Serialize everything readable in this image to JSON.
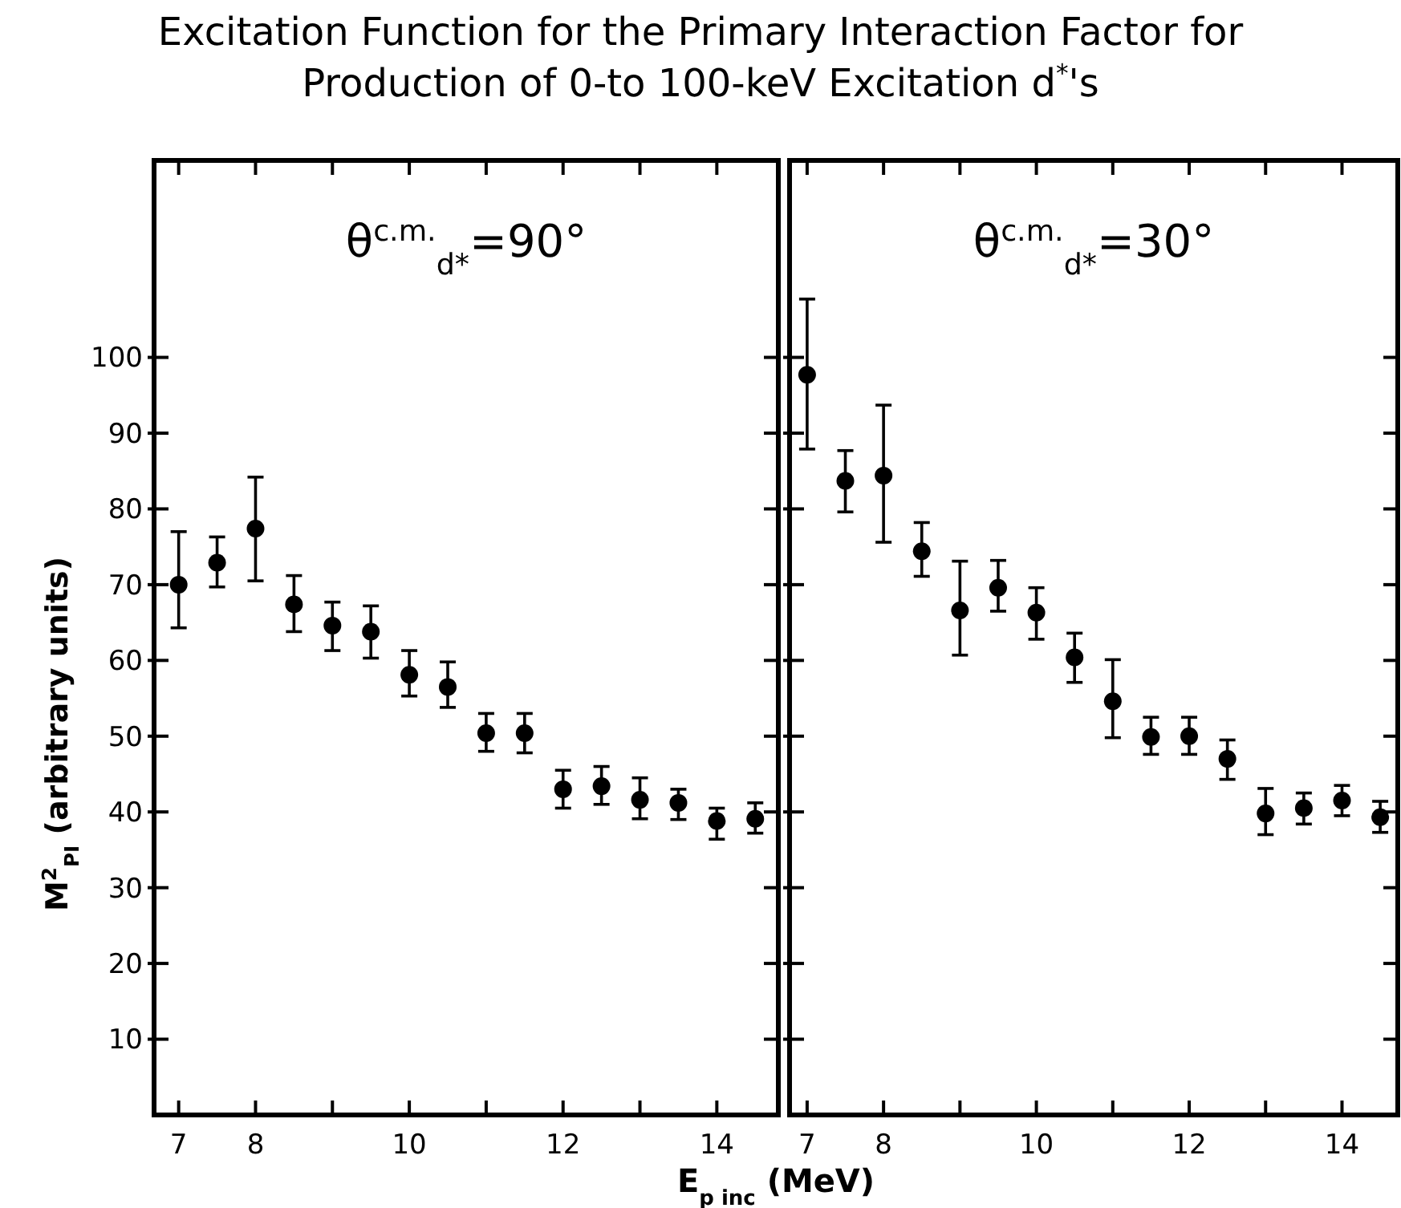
{
  "chart_data": [
    {
      "type": "scatter",
      "title": "Excitation Function for the Primary Interaction Factor for Production of 0-to 100-keV Excitation d$^{*}$'s",
      "xlabel": "E$_{p inc}$ (MeV)",
      "ylabel": "M$^{2}$$_{PI}$ (arbitrary units)",
      "annotations": [
        "θ$^{c.m.}$$_{d*}$=90°"
      ],
      "marker": "circle",
      "xlim": [
        6.68,
        14.8
      ],
      "ylim": [
        0,
        126
      ],
      "xticks": [
        7,
        8,
        {
          "value": 9,
          "label": null
        },
        10,
        {
          "value": 11,
          "label": null
        },
        12,
        {
          "value": 13,
          "label": null
        },
        14
      ],
      "yticks": [
        10,
        20,
        30,
        40,
        50,
        60,
        70,
        80,
        90,
        100
      ],
      "series": [
        {
          "color": "#000000",
          "x": [
            7,
            7.5,
            8,
            8.5,
            9,
            9.5,
            10,
            10.5,
            11,
            11.5,
            12,
            12.5,
            13,
            13.5,
            14,
            14.5
          ],
          "values": [
            70.0,
            72.9,
            77.4,
            67.4,
            64.6,
            63.8,
            58.1,
            56.5,
            50.4,
            50.4,
            43.0,
            43.4,
            41.6,
            41.2,
            38.8,
            39.1
          ],
          "errors": [
            [
              64.3,
              77.0
            ],
            [
              69.7,
              76.3
            ],
            [
              70.5,
              84.2
            ],
            [
              63.8,
              71.2
            ],
            [
              61.3,
              67.7
            ],
            [
              60.3,
              67.2
            ],
            [
              55.3,
              61.3
            ],
            [
              53.8,
              59.8
            ],
            [
              48.0,
              53.0
            ],
            [
              47.8,
              53.0
            ],
            [
              40.5,
              45.5
            ],
            [
              41.0,
              46.0
            ],
            [
              39.1,
              44.5
            ],
            [
              39.0,
              43.0
            ],
            [
              36.4,
              40.5
            ],
            [
              37.2,
              41.2
            ]
          ]
        }
      ]
    },
    {
      "type": "scatter",
      "annotations": [
        "θ$^{c.m.}$$_{d*}$=30°"
      ],
      "marker": "circle",
      "tick_labels": "x",
      "xlim": [
        6.77,
        14.73
      ],
      "ylim": [
        0,
        126
      ],
      "xticks": [
        7,
        8,
        {
          "value": 9,
          "label": null
        },
        10,
        {
          "value": 11,
          "label": null
        },
        12,
        {
          "value": 13,
          "label": null
        },
        14
      ],
      "yticks": [
        {
          "value": 10,
          "label": null
        },
        {
          "value": 20,
          "label": null
        },
        {
          "value": 30,
          "label": null
        },
        {
          "value": 40,
          "label": null
        },
        {
          "value": 50,
          "label": null
        },
        {
          "value": 60,
          "label": null
        },
        {
          "value": 70,
          "label": null
        },
        {
          "value": 80,
          "label": null
        },
        {
          "value": 90,
          "label": null
        },
        {
          "value": 100,
          "label": null
        }
      ],
      "series": [
        {
          "color": "#000000",
          "x": [
            7,
            7.5,
            8,
            8.5,
            9,
            9.5,
            10,
            10.5,
            11,
            11.5,
            12,
            12.5,
            13,
            13.5,
            14,
            14.5
          ],
          "values": [
            97.7,
            83.7,
            84.4,
            74.4,
            66.6,
            69.6,
            66.3,
            60.4,
            54.6,
            49.9,
            50.0,
            47.0,
            39.8,
            40.5,
            41.5,
            39.3
          ],
          "errors": [
            [
              87.9,
              107.7
            ],
            [
              79.6,
              87.7
            ],
            [
              75.6,
              93.7
            ],
            [
              71.1,
              78.2
            ],
            [
              60.7,
              73.1
            ],
            [
              66.5,
              73.2
            ],
            [
              62.8,
              69.6
            ],
            [
              57.1,
              63.6
            ],
            [
              49.8,
              60.1
            ],
            [
              47.6,
              52.5
            ],
            [
              47.6,
              52.5
            ],
            [
              44.3,
              49.5
            ],
            [
              37.0,
              43.1
            ],
            [
              38.4,
              42.5
            ],
            [
              39.5,
              43.5
            ],
            [
              37.3,
              41.4
            ]
          ]
        }
      ]
    }
  ]
}
